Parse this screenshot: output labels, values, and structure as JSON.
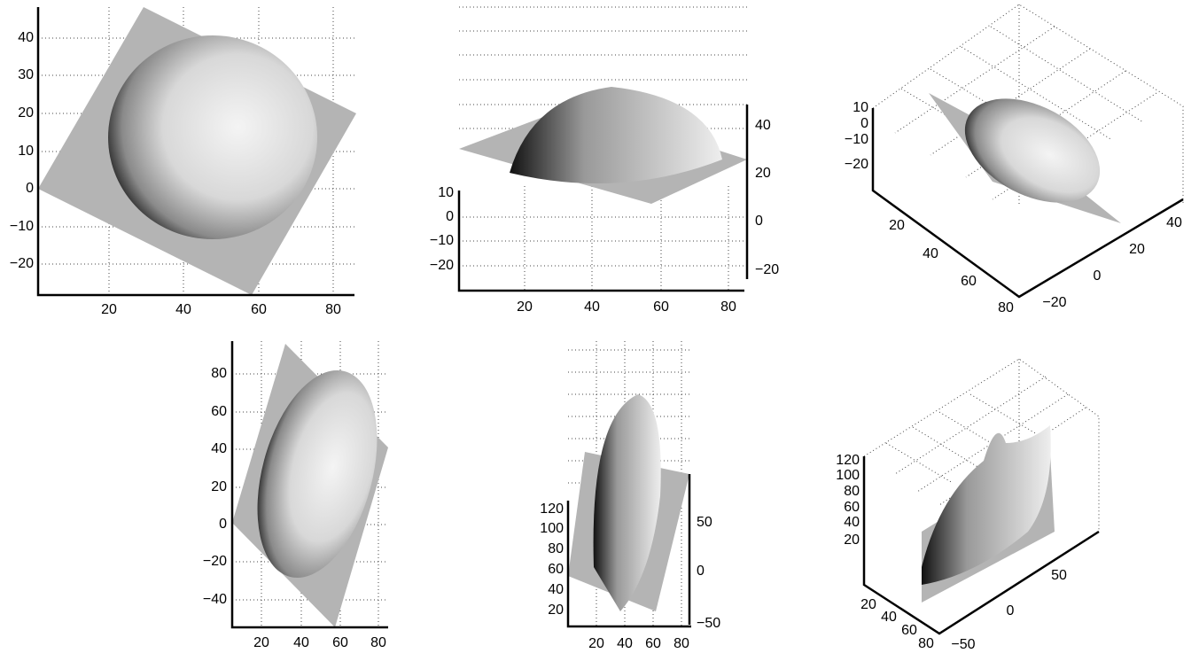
{
  "panels": [
    {
      "y_ticks": [
        "40",
        "30",
        "20",
        "10",
        "0",
        "−10",
        "−20"
      ],
      "x_ticks": [
        "20",
        "40",
        "60",
        "80"
      ]
    },
    {
      "y_ticks": [
        "10",
        "0",
        "−10",
        "−20"
      ],
      "y2_ticks": [
        "40",
        "20",
        "0",
        "−20"
      ],
      "x_ticks": [
        "20",
        "40",
        "60",
        "80"
      ]
    },
    {
      "z_ticks": [
        "10",
        "0",
        "−10",
        "−20"
      ],
      "x_ticks": [
        "20",
        "40",
        "60",
        "80"
      ],
      "y_ticks": [
        "40",
        "20",
        "0",
        "−20"
      ]
    },
    {
      "y_ticks": [
        "80",
        "60",
        "40",
        "20",
        "0",
        "−20",
        "−40"
      ],
      "x_ticks": [
        "20",
        "40",
        "60",
        "80"
      ]
    },
    {
      "y_ticks": [
        "120",
        "100",
        "80",
        "60",
        "40",
        "20"
      ],
      "y2_ticks": [
        "50",
        "0",
        "−50"
      ],
      "x_ticks": [
        "20",
        "40",
        "60",
        "80"
      ]
    },
    {
      "z_ticks": [
        "120",
        "100",
        "80",
        "60",
        "40",
        "20"
      ],
      "x_ticks": [
        "20",
        "40",
        "60",
        "80"
      ],
      "y_ticks": [
        "50",
        "0",
        "−50"
      ]
    }
  ]
}
